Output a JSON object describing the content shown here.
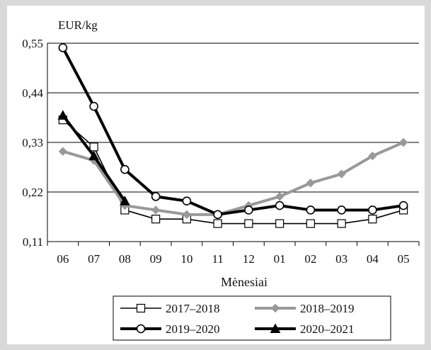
{
  "chart_data": {
    "type": "line",
    "ylabel": "EUR/kg",
    "xlabel": "Mėnesiai",
    "categories": [
      "06",
      "07",
      "08",
      "09",
      "10",
      "11",
      "12",
      "01",
      "02",
      "03",
      "04",
      "05"
    ],
    "yticks": [
      "0,11",
      "0,22",
      "0,33",
      "0,44",
      "0,55"
    ],
    "ylim": [
      0.11,
      0.55
    ],
    "grid": true,
    "legend_position": "bottom",
    "series": [
      {
        "name": "2017–2018",
        "values": [
          0.38,
          0.32,
          0.18,
          0.16,
          0.16,
          0.15,
          0.15,
          0.15,
          0.15,
          0.15,
          0.16,
          0.18
        ],
        "color": "#000000",
        "marker": "square-open",
        "weight": "thin"
      },
      {
        "name": "2018–2019",
        "values": [
          0.31,
          0.29,
          0.19,
          0.18,
          0.17,
          0.17,
          0.19,
          0.21,
          0.24,
          0.26,
          0.3,
          0.33
        ],
        "color": "#999999",
        "marker": "diamond",
        "weight": "thick"
      },
      {
        "name": "2019–2020",
        "values": [
          0.54,
          0.41,
          0.27,
          0.21,
          0.2,
          0.17,
          0.18,
          0.19,
          0.18,
          0.18,
          0.18,
          0.19
        ],
        "color": "#000000",
        "marker": "circle-open",
        "weight": "thick"
      },
      {
        "name": "2020–2021",
        "values": [
          0.39,
          0.3,
          0.2,
          null,
          null,
          null,
          null,
          null,
          null,
          null,
          null,
          null
        ],
        "color": "#000000",
        "marker": "triangle",
        "weight": "thick"
      }
    ]
  }
}
